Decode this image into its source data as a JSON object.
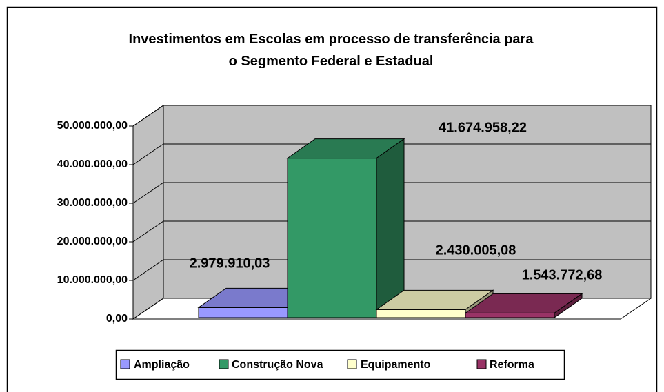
{
  "chart_data": {
    "type": "bar3d",
    "title": "Investimentos em Escolas em processo de transferência para o Segmento Federal e Estadual",
    "categories": [
      null
    ],
    "series": [
      {
        "name": "Ampliação",
        "color": "#9999ff",
        "values": [
          2979910.03
        ],
        "value_labels": [
          "2.979.910,03"
        ]
      },
      {
        "name": "Construção Nova",
        "color": "#339966",
        "values": [
          41674958.22
        ],
        "value_labels": [
          "41.674.958,22"
        ]
      },
      {
        "name": "Equipamento",
        "color": "#ffffcc",
        "values": [
          2430005.08
        ],
        "value_labels": [
          "2.430.005,08"
        ]
      },
      {
        "name": "Reforma",
        "color": "#993366",
        "values": [
          1543772.68
        ],
        "value_labels": [
          "1.543.772,68"
        ]
      }
    ],
    "ylim": [
      0,
      50000000
    ],
    "yticks": [
      {
        "value": 0,
        "label": "0,00"
      },
      {
        "value": 10000000,
        "label": "10.000.000,00"
      },
      {
        "value": 20000000,
        "label": "20.000.000,00"
      },
      {
        "value": 30000000,
        "label": "30.000.000,00"
      },
      {
        "value": 40000000,
        "label": "40.000.000,00"
      },
      {
        "value": 50000000,
        "label": "50.000.000,00"
      }
    ],
    "grid": true,
    "legend": "bottom"
  }
}
